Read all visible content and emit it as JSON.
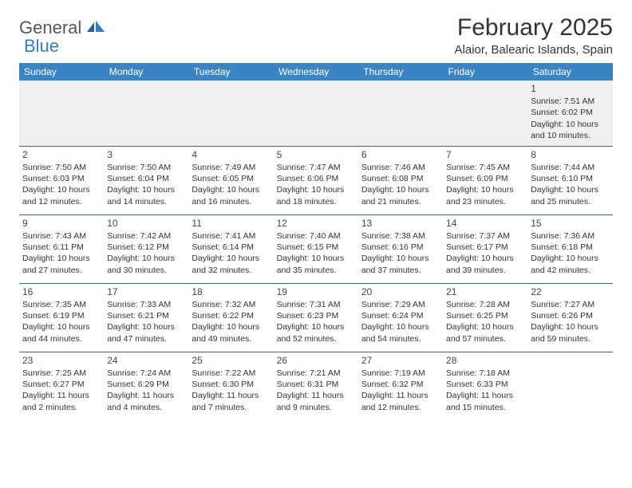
{
  "logo": {
    "text1": "General",
    "text2": "Blue"
  },
  "title": "February 2025",
  "location": "Alaior, Balearic Islands, Spain",
  "colors": {
    "header_bg": "#3b84c4",
    "header_text": "#ffffff",
    "rule": "#2f6aa0",
    "first_week_bg": "#f0f0f0",
    "logo_blue": "#2f7fbf",
    "text": "#333333"
  },
  "day_headers": [
    "Sunday",
    "Monday",
    "Tuesday",
    "Wednesday",
    "Thursday",
    "Friday",
    "Saturday"
  ],
  "weeks": [
    [
      null,
      null,
      null,
      null,
      null,
      null,
      {
        "n": "1",
        "sr": "Sunrise: 7:51 AM",
        "ss": "Sunset: 6:02 PM",
        "d1": "Daylight: 10 hours",
        "d2": "and 10 minutes."
      }
    ],
    [
      {
        "n": "2",
        "sr": "Sunrise: 7:50 AM",
        "ss": "Sunset: 6:03 PM",
        "d1": "Daylight: 10 hours",
        "d2": "and 12 minutes."
      },
      {
        "n": "3",
        "sr": "Sunrise: 7:50 AM",
        "ss": "Sunset: 6:04 PM",
        "d1": "Daylight: 10 hours",
        "d2": "and 14 minutes."
      },
      {
        "n": "4",
        "sr": "Sunrise: 7:49 AM",
        "ss": "Sunset: 6:05 PM",
        "d1": "Daylight: 10 hours",
        "d2": "and 16 minutes."
      },
      {
        "n": "5",
        "sr": "Sunrise: 7:47 AM",
        "ss": "Sunset: 6:06 PM",
        "d1": "Daylight: 10 hours",
        "d2": "and 18 minutes."
      },
      {
        "n": "6",
        "sr": "Sunrise: 7:46 AM",
        "ss": "Sunset: 6:08 PM",
        "d1": "Daylight: 10 hours",
        "d2": "and 21 minutes."
      },
      {
        "n": "7",
        "sr": "Sunrise: 7:45 AM",
        "ss": "Sunset: 6:09 PM",
        "d1": "Daylight: 10 hours",
        "d2": "and 23 minutes."
      },
      {
        "n": "8",
        "sr": "Sunrise: 7:44 AM",
        "ss": "Sunset: 6:10 PM",
        "d1": "Daylight: 10 hours",
        "d2": "and 25 minutes."
      }
    ],
    [
      {
        "n": "9",
        "sr": "Sunrise: 7:43 AM",
        "ss": "Sunset: 6:11 PM",
        "d1": "Daylight: 10 hours",
        "d2": "and 27 minutes."
      },
      {
        "n": "10",
        "sr": "Sunrise: 7:42 AM",
        "ss": "Sunset: 6:12 PM",
        "d1": "Daylight: 10 hours",
        "d2": "and 30 minutes."
      },
      {
        "n": "11",
        "sr": "Sunrise: 7:41 AM",
        "ss": "Sunset: 6:14 PM",
        "d1": "Daylight: 10 hours",
        "d2": "and 32 minutes."
      },
      {
        "n": "12",
        "sr": "Sunrise: 7:40 AM",
        "ss": "Sunset: 6:15 PM",
        "d1": "Daylight: 10 hours",
        "d2": "and 35 minutes."
      },
      {
        "n": "13",
        "sr": "Sunrise: 7:38 AM",
        "ss": "Sunset: 6:16 PM",
        "d1": "Daylight: 10 hours",
        "d2": "and 37 minutes."
      },
      {
        "n": "14",
        "sr": "Sunrise: 7:37 AM",
        "ss": "Sunset: 6:17 PM",
        "d1": "Daylight: 10 hours",
        "d2": "and 39 minutes."
      },
      {
        "n": "15",
        "sr": "Sunrise: 7:36 AM",
        "ss": "Sunset: 6:18 PM",
        "d1": "Daylight: 10 hours",
        "d2": "and 42 minutes."
      }
    ],
    [
      {
        "n": "16",
        "sr": "Sunrise: 7:35 AM",
        "ss": "Sunset: 6:19 PM",
        "d1": "Daylight: 10 hours",
        "d2": "and 44 minutes."
      },
      {
        "n": "17",
        "sr": "Sunrise: 7:33 AM",
        "ss": "Sunset: 6:21 PM",
        "d1": "Daylight: 10 hours",
        "d2": "and 47 minutes."
      },
      {
        "n": "18",
        "sr": "Sunrise: 7:32 AM",
        "ss": "Sunset: 6:22 PM",
        "d1": "Daylight: 10 hours",
        "d2": "and 49 minutes."
      },
      {
        "n": "19",
        "sr": "Sunrise: 7:31 AM",
        "ss": "Sunset: 6:23 PM",
        "d1": "Daylight: 10 hours",
        "d2": "and 52 minutes."
      },
      {
        "n": "20",
        "sr": "Sunrise: 7:29 AM",
        "ss": "Sunset: 6:24 PM",
        "d1": "Daylight: 10 hours",
        "d2": "and 54 minutes."
      },
      {
        "n": "21",
        "sr": "Sunrise: 7:28 AM",
        "ss": "Sunset: 6:25 PM",
        "d1": "Daylight: 10 hours",
        "d2": "and 57 minutes."
      },
      {
        "n": "22",
        "sr": "Sunrise: 7:27 AM",
        "ss": "Sunset: 6:26 PM",
        "d1": "Daylight: 10 hours",
        "d2": "and 59 minutes."
      }
    ],
    [
      {
        "n": "23",
        "sr": "Sunrise: 7:25 AM",
        "ss": "Sunset: 6:27 PM",
        "d1": "Daylight: 11 hours",
        "d2": "and 2 minutes."
      },
      {
        "n": "24",
        "sr": "Sunrise: 7:24 AM",
        "ss": "Sunset: 6:29 PM",
        "d1": "Daylight: 11 hours",
        "d2": "and 4 minutes."
      },
      {
        "n": "25",
        "sr": "Sunrise: 7:22 AM",
        "ss": "Sunset: 6:30 PM",
        "d1": "Daylight: 11 hours",
        "d2": "and 7 minutes."
      },
      {
        "n": "26",
        "sr": "Sunrise: 7:21 AM",
        "ss": "Sunset: 6:31 PM",
        "d1": "Daylight: 11 hours",
        "d2": "and 9 minutes."
      },
      {
        "n": "27",
        "sr": "Sunrise: 7:19 AM",
        "ss": "Sunset: 6:32 PM",
        "d1": "Daylight: 11 hours",
        "d2": "and 12 minutes."
      },
      {
        "n": "28",
        "sr": "Sunrise: 7:18 AM",
        "ss": "Sunset: 6:33 PM",
        "d1": "Daylight: 11 hours",
        "d2": "and 15 minutes."
      },
      null
    ]
  ]
}
